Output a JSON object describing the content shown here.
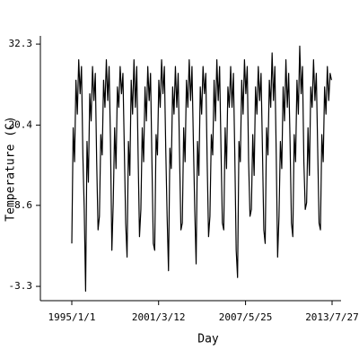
{
  "chart_data": {
    "type": "line",
    "x_label": "Day",
    "y_label": "Temperature (C)",
    "xlim": [
      -819,
      7017
    ],
    "ylim": [
      -5.4,
      33.5
    ],
    "xticks": [
      {
        "value": 0,
        "label": "1995/1/1"
      },
      {
        "value": 2262,
        "label": "2001/3/12"
      },
      {
        "value": 4528,
        "label": "2007/5/25"
      },
      {
        "value": 6783,
        "label": "2013/7/27"
      }
    ],
    "yticks": [
      32.3,
      20.4,
      8.6,
      -3.3
    ],
    "series": [
      {
        "color": "#000000",
        "x": [
          0,
          36,
          72,
          108,
          144,
          180,
          216,
          252,
          288,
          324,
          360,
          396,
          432,
          468,
          504,
          540,
          576,
          612,
          648,
          684,
          720,
          756,
          792,
          828,
          864,
          900,
          936,
          972,
          1008,
          1044,
          1080,
          1116,
          1152,
          1188,
          1224,
          1260,
          1296,
          1332,
          1368,
          1404,
          1440,
          1476,
          1512,
          1548,
          1584,
          1620,
          1656,
          1692,
          1728,
          1764,
          1800,
          1836,
          1872,
          1908,
          1944,
          1980,
          2016,
          2052,
          2088,
          2124,
          2160,
          2196,
          2232,
          2268,
          2304,
          2340,
          2376,
          2412,
          2448,
          2484,
          2520,
          2556,
          2592,
          2628,
          2664,
          2700,
          2736,
          2772,
          2808,
          2844,
          2880,
          2916,
          2952,
          2988,
          3024,
          3060,
          3096,
          3132,
          3168,
          3204,
          3240,
          3276,
          3312,
          3348,
          3384,
          3420,
          3456,
          3492,
          3528,
          3564,
          3600,
          3636,
          3672,
          3708,
          3744,
          3780,
          3816,
          3852,
          3888,
          3924,
          3960,
          3996,
          4032,
          4068,
          4104,
          4140,
          4176,
          4212,
          4248,
          4284,
          4320,
          4356,
          4392,
          4428,
          4464,
          4500,
          4536,
          4572,
          4608,
          4644,
          4680,
          4716,
          4752,
          4788,
          4824,
          4860,
          4896,
          4932,
          4968,
          5004,
          5040,
          5076,
          5112,
          5148,
          5184,
          5220,
          5256,
          5292,
          5328,
          5364,
          5400,
          5436,
          5472,
          5508,
          5544,
          5580,
          5616,
          5652,
          5688,
          5724,
          5760,
          5796,
          5832,
          5868,
          5904,
          5940,
          5976,
          6012,
          6048,
          6084,
          6120,
          6156,
          6192,
          6228,
          6264,
          6300,
          6336,
          6372,
          6408,
          6444,
          6480,
          6516,
          6552,
          6588,
          6624,
          6660,
          6696,
          6732,
          6768
        ],
        "values": [
          3,
          20,
          15,
          27,
          22,
          30,
          25,
          29,
          16,
          8,
          -4,
          18,
          12,
          25,
          21,
          29,
          24,
          28,
          15,
          5,
          7,
          19,
          16,
          27,
          23,
          30,
          24,
          29,
          18,
          2,
          9,
          20,
          14,
          26,
          23,
          29,
          25,
          28,
          17,
          6,
          1,
          18,
          13,
          27,
          22,
          30,
          23,
          29,
          16,
          4,
          8,
          20,
          15,
          26,
          21,
          29,
          24,
          28,
          15,
          3,
          2,
          19,
          16,
          27,
          23,
          30,
          25,
          29,
          17,
          7,
          -1,
          17,
          14,
          26,
          22,
          29,
          23,
          28,
          16,
          5,
          6,
          20,
          15,
          27,
          23,
          30,
          24,
          29,
          18,
          8,
          0,
          18,
          13,
          26,
          22,
          29,
          25,
          28,
          15,
          4,
          7,
          19,
          16,
          27,
          21,
          30,
          24,
          29,
          17,
          6,
          5,
          20,
          14,
          26,
          23,
          29,
          23,
          28,
          16,
          2,
          -2,
          18,
          15,
          27,
          22,
          30,
          25,
          29,
          15,
          7,
          8,
          19,
          13,
          26,
          22,
          29,
          24,
          28,
          17,
          5,
          3,
          20,
          16,
          27,
          23,
          31,
          24,
          29,
          16,
          1,
          7,
          18,
          14,
          26,
          21,
          30,
          23,
          28,
          18,
          6,
          4,
          19,
          15,
          27,
          22,
          32,
          25,
          29,
          15,
          8,
          9,
          20,
          13,
          26,
          23,
          30,
          24,
          28,
          17,
          6,
          5,
          19,
          15,
          26,
          22,
          29,
          24,
          28,
          27
        ]
      }
    ]
  }
}
